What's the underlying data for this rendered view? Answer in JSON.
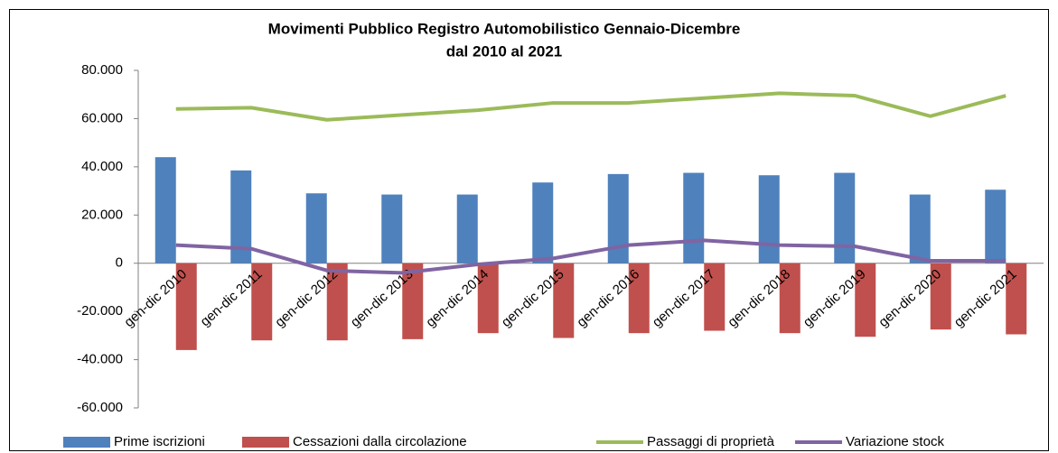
{
  "chart_data": {
    "type": "bar",
    "title": "Movimenti Pubblico Registro Automobilistico Gennaio-Dicembre",
    "subtitle": "dal 2010 al 2021",
    "categories": [
      "gen-dic 2010",
      "gen-dic 2011",
      "gen-dic 2012",
      "gen-dic 2013",
      "gen-dic 2014",
      "gen-dic 2015",
      "gen-dic 2016",
      "gen-dic 2017",
      "gen-dic 2018",
      "gen-dic 2019",
      "gen-dic 2020",
      "gen-dic 2021"
    ],
    "series": [
      {
        "name": "Prime iscrizioni",
        "type": "bar",
        "color": "#4f81bd",
        "values": [
          44000,
          38500,
          29000,
          28500,
          28500,
          33500,
          37000,
          37500,
          36500,
          37500,
          28500,
          30500
        ]
      },
      {
        "name": "Cessazioni dalla circolazione",
        "type": "bar",
        "color": "#c0504d",
        "values": [
          -36000,
          -32000,
          -32000,
          -31500,
          -29000,
          -31000,
          -29000,
          -28000,
          -29000,
          -30500,
          -27500,
          -29500
        ]
      },
      {
        "name": "Passaggi di proprietà",
        "type": "line",
        "color": "#9bbb59",
        "values": [
          64000,
          64500,
          59500,
          61500,
          63500,
          66500,
          66500,
          68500,
          70500,
          69500,
          61000,
          69500
        ]
      },
      {
        "name": "Variazione stock",
        "type": "line",
        "color": "#8064a2",
        "values": [
          7500,
          6000,
          -3000,
          -4000,
          -500,
          2000,
          7500,
          9500,
          7500,
          7000,
          1000,
          1000
        ]
      }
    ],
    "ylim": [
      -60000,
      80000
    ],
    "yticks": [
      {
        "value": -60000,
        "label": "-60.000"
      },
      {
        "value": -40000,
        "label": "-40.000"
      },
      {
        "value": -20000,
        "label": "-20.000"
      },
      0,
      {
        "value": 20000,
        "label": "20.000"
      },
      {
        "value": 40000,
        "label": "40.000"
      },
      {
        "value": 60000,
        "label": "60.000"
      },
      {
        "value": 80000,
        "label": "80.000"
      }
    ],
    "legend": "bottom"
  }
}
